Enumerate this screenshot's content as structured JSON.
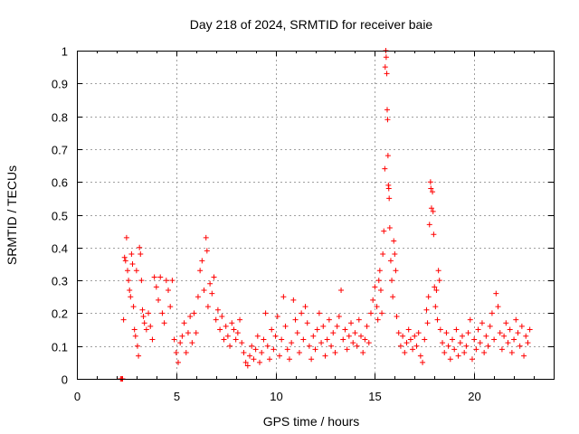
{
  "chart_data": {
    "type": "scatter",
    "title": "Day 218 of 2024, SRMTID for receiver baie",
    "xlabel": "GPS time / hours",
    "ylabel": "SRMTID / TECUs",
    "xlim": [
      0,
      24
    ],
    "ylim": [
      0,
      1
    ],
    "x_ticks": [
      0,
      5,
      10,
      15,
      20
    ],
    "x_tick_labels": [
      "0",
      "5",
      "10",
      "15",
      "20"
    ],
    "y_ticks": [
      0,
      0.1,
      0.2,
      0.3,
      0.4,
      0.5,
      0.6,
      0.7,
      0.8,
      0.9,
      1
    ],
    "y_tick_labels": [
      "0",
      "0.1",
      "0.2",
      "0.3",
      "0.4",
      "0.5",
      "0.6",
      "0.7",
      "0.8",
      "0.9",
      "1"
    ],
    "grid": true,
    "marker": "plus",
    "color": "#ff0000",
    "series": [
      {
        "name": "baie",
        "points": [
          [
            2.2,
            0.0
          ],
          [
            2.25,
            0.0
          ],
          [
            2.3,
            0.0
          ],
          [
            2.35,
            0.18
          ],
          [
            2.4,
            0.37
          ],
          [
            2.45,
            0.36
          ],
          [
            2.5,
            0.43
          ],
          [
            2.55,
            0.33
          ],
          [
            2.6,
            0.3
          ],
          [
            2.65,
            0.27
          ],
          [
            2.7,
            0.25
          ],
          [
            2.75,
            0.38
          ],
          [
            2.8,
            0.35
          ],
          [
            2.85,
            0.22
          ],
          [
            2.9,
            0.15
          ],
          [
            2.95,
            0.13
          ],
          [
            3.0,
            0.33
          ],
          [
            3.05,
            0.1
          ],
          [
            3.1,
            0.07
          ],
          [
            3.15,
            0.4
          ],
          [
            3.2,
            0.38
          ],
          [
            3.25,
            0.3
          ],
          [
            3.3,
            0.21
          ],
          [
            3.35,
            0.19
          ],
          [
            3.4,
            0.17
          ],
          [
            3.5,
            0.15
          ],
          [
            3.6,
            0.2
          ],
          [
            3.7,
            0.16
          ],
          [
            3.8,
            0.12
          ],
          [
            3.9,
            0.31
          ],
          [
            4.0,
            0.28
          ],
          [
            4.1,
            0.24
          ],
          [
            4.2,
            0.31
          ],
          [
            4.3,
            0.2
          ],
          [
            4.4,
            0.17
          ],
          [
            4.5,
            0.3
          ],
          [
            4.6,
            0.27
          ],
          [
            4.7,
            0.22
          ],
          [
            4.8,
            0.3
          ],
          [
            4.9,
            0.12
          ],
          [
            5.0,
            0.08
          ],
          [
            5.1,
            0.05
          ],
          [
            5.2,
            0.11
          ],
          [
            5.3,
            0.13
          ],
          [
            5.4,
            0.17
          ],
          [
            5.5,
            0.08
          ],
          [
            5.6,
            0.14
          ],
          [
            5.7,
            0.19
          ],
          [
            5.8,
            0.11
          ],
          [
            5.9,
            0.2
          ],
          [
            6.0,
            0.14
          ],
          [
            6.1,
            0.25
          ],
          [
            6.2,
            0.33
          ],
          [
            6.3,
            0.36
          ],
          [
            6.4,
            0.27
          ],
          [
            6.5,
            0.43
          ],
          [
            6.55,
            0.39
          ],
          [
            6.6,
            0.22
          ],
          [
            6.7,
            0.29
          ],
          [
            6.8,
            0.26
          ],
          [
            6.9,
            0.31
          ],
          [
            7.0,
            0.18
          ],
          [
            7.1,
            0.21
          ],
          [
            7.2,
            0.15
          ],
          [
            7.3,
            0.19
          ],
          [
            7.4,
            0.12
          ],
          [
            7.5,
            0.16
          ],
          [
            7.6,
            0.13
          ],
          [
            7.7,
            0.1
          ],
          [
            7.8,
            0.17
          ],
          [
            7.9,
            0.15
          ],
          [
            8.0,
            0.12
          ],
          [
            8.1,
            0.14
          ],
          [
            8.2,
            0.18
          ],
          [
            8.3,
            0.11
          ],
          [
            8.4,
            0.08
          ],
          [
            8.5,
            0.05
          ],
          [
            8.6,
            0.04
          ],
          [
            8.7,
            0.07
          ],
          [
            8.8,
            0.1
          ],
          [
            8.9,
            0.06
          ],
          [
            9.0,
            0.09
          ],
          [
            9.1,
            0.13
          ],
          [
            9.2,
            0.05
          ],
          [
            9.3,
            0.08
          ],
          [
            9.4,
            0.12
          ],
          [
            9.5,
            0.2
          ],
          [
            9.6,
            0.1
          ],
          [
            9.7,
            0.06
          ],
          [
            9.8,
            0.15
          ],
          [
            9.9,
            0.09
          ],
          [
            10.0,
            0.13
          ],
          [
            10.1,
            0.19
          ],
          [
            10.2,
            0.07
          ],
          [
            10.3,
            0.12
          ],
          [
            10.4,
            0.25
          ],
          [
            10.5,
            0.16
          ],
          [
            10.6,
            0.09
          ],
          [
            10.7,
            0.06
          ],
          [
            10.8,
            0.11
          ],
          [
            10.9,
            0.24
          ],
          [
            11.0,
            0.18
          ],
          [
            11.1,
            0.14
          ],
          [
            11.2,
            0.08
          ],
          [
            11.3,
            0.2
          ],
          [
            11.4,
            0.12
          ],
          [
            11.5,
            0.22
          ],
          [
            11.6,
            0.17
          ],
          [
            11.7,
            0.1
          ],
          [
            11.8,
            0.06
          ],
          [
            11.9,
            0.13
          ],
          [
            12.0,
            0.09
          ],
          [
            12.1,
            0.15
          ],
          [
            12.2,
            0.2
          ],
          [
            12.3,
            0.11
          ],
          [
            12.4,
            0.16
          ],
          [
            12.5,
            0.07
          ],
          [
            12.6,
            0.12
          ],
          [
            12.7,
            0.18
          ],
          [
            12.8,
            0.1
          ],
          [
            12.9,
            0.14
          ],
          [
            13.0,
            0.08
          ],
          [
            13.1,
            0.16
          ],
          [
            13.2,
            0.19
          ],
          [
            13.3,
            0.27
          ],
          [
            13.4,
            0.12
          ],
          [
            13.5,
            0.15
          ],
          [
            13.6,
            0.09
          ],
          [
            13.7,
            0.13
          ],
          [
            13.8,
            0.17
          ],
          [
            13.9,
            0.11
          ],
          [
            14.0,
            0.14
          ],
          [
            14.1,
            0.1
          ],
          [
            14.2,
            0.18
          ],
          [
            14.3,
            0.13
          ],
          [
            14.4,
            0.08
          ],
          [
            14.5,
            0.12
          ],
          [
            14.6,
            0.16
          ],
          [
            14.7,
            0.11
          ],
          [
            14.8,
            0.2
          ],
          [
            14.9,
            0.24
          ],
          [
            15.0,
            0.28
          ],
          [
            15.1,
            0.22
          ],
          [
            15.15,
            0.18
          ],
          [
            15.2,
            0.3
          ],
          [
            15.25,
            0.33
          ],
          [
            15.3,
            0.27
          ],
          [
            15.35,
            0.2
          ],
          [
            15.4,
            0.38
          ],
          [
            15.45,
            0.45
          ],
          [
            15.5,
            0.64
          ],
          [
            15.52,
            0.95
          ],
          [
            15.55,
            1.0
          ],
          [
            15.57,
            0.98
          ],
          [
            15.6,
            0.93
          ],
          [
            15.62,
            0.82
          ],
          [
            15.64,
            0.79
          ],
          [
            15.66,
            0.68
          ],
          [
            15.68,
            0.59
          ],
          [
            15.7,
            0.58
          ],
          [
            15.72,
            0.55
          ],
          [
            15.75,
            0.46
          ],
          [
            15.8,
            0.36
          ],
          [
            15.85,
            0.3
          ],
          [
            15.9,
            0.25
          ],
          [
            15.95,
            0.42
          ],
          [
            16.0,
            0.38
          ],
          [
            16.05,
            0.33
          ],
          [
            16.1,
            0.19
          ],
          [
            16.2,
            0.14
          ],
          [
            16.3,
            0.1
          ],
          [
            16.4,
            0.13
          ],
          [
            16.5,
            0.08
          ],
          [
            16.6,
            0.11
          ],
          [
            16.7,
            0.15
          ],
          [
            16.8,
            0.12
          ],
          [
            16.9,
            0.09
          ],
          [
            17.0,
            0.13
          ],
          [
            17.1,
            0.1
          ],
          [
            17.2,
            0.14
          ],
          [
            17.3,
            0.07
          ],
          [
            17.4,
            0.05
          ],
          [
            17.5,
            0.12
          ],
          [
            17.6,
            0.21
          ],
          [
            17.65,
            0.17
          ],
          [
            17.7,
            0.25
          ],
          [
            17.75,
            0.47
          ],
          [
            17.8,
            0.6
          ],
          [
            17.82,
            0.58
          ],
          [
            17.85,
            0.52
          ],
          [
            17.9,
            0.57
          ],
          [
            17.93,
            0.51
          ],
          [
            17.96,
            0.44
          ],
          [
            18.0,
            0.28
          ],
          [
            18.05,
            0.22
          ],
          [
            18.1,
            0.27
          ],
          [
            18.15,
            0.18
          ],
          [
            18.2,
            0.33
          ],
          [
            18.25,
            0.3
          ],
          [
            18.3,
            0.15
          ],
          [
            18.4,
            0.11
          ],
          [
            18.5,
            0.08
          ],
          [
            18.6,
            0.14
          ],
          [
            18.7,
            0.1
          ],
          [
            18.8,
            0.06
          ],
          [
            18.9,
            0.12
          ],
          [
            19.0,
            0.09
          ],
          [
            19.1,
            0.15
          ],
          [
            19.2,
            0.07
          ],
          [
            19.3,
            0.11
          ],
          [
            19.4,
            0.13
          ],
          [
            19.5,
            0.08
          ],
          [
            19.6,
            0.1
          ],
          [
            19.7,
            0.14
          ],
          [
            19.8,
            0.18
          ],
          [
            19.9,
            0.06
          ],
          [
            20.0,
            0.12
          ],
          [
            20.1,
            0.09
          ],
          [
            20.2,
            0.15
          ],
          [
            20.3,
            0.11
          ],
          [
            20.4,
            0.17
          ],
          [
            20.5,
            0.08
          ],
          [
            20.6,
            0.13
          ],
          [
            20.7,
            0.1
          ],
          [
            20.8,
            0.16
          ],
          [
            20.9,
            0.2
          ],
          [
            21.0,
            0.12
          ],
          [
            21.1,
            0.26
          ],
          [
            21.2,
            0.22
          ],
          [
            21.3,
            0.14
          ],
          [
            21.4,
            0.09
          ],
          [
            21.5,
            0.13
          ],
          [
            21.6,
            0.17
          ],
          [
            21.7,
            0.11
          ],
          [
            21.8,
            0.15
          ],
          [
            21.9,
            0.08
          ],
          [
            22.0,
            0.12
          ],
          [
            22.1,
            0.18
          ],
          [
            22.2,
            0.14
          ],
          [
            22.3,
            0.1
          ],
          [
            22.4,
            0.16
          ],
          [
            22.5,
            0.07
          ],
          [
            22.6,
            0.13
          ],
          [
            22.7,
            0.11
          ],
          [
            22.8,
            0.15
          ]
        ]
      }
    ]
  }
}
